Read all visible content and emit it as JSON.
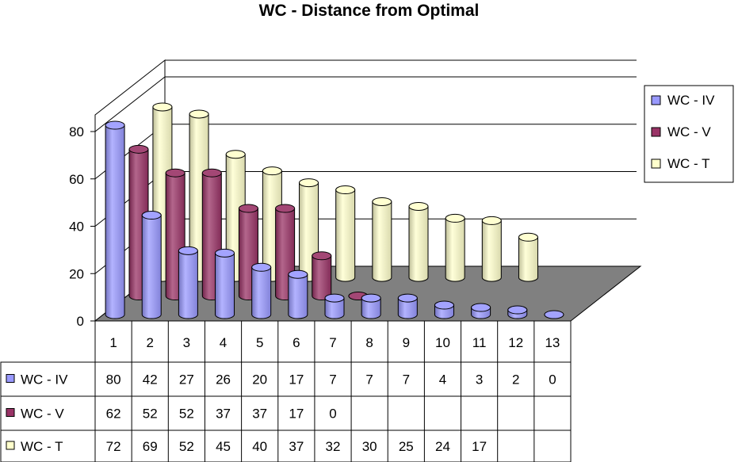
{
  "chart_data": {
    "type": "bar",
    "subtype": "3d-cylinder",
    "title": "WC - Distance from Optimal",
    "categories": [
      "1",
      "2",
      "3",
      "4",
      "5",
      "6",
      "7",
      "8",
      "9",
      "10",
      "11",
      "12",
      "13"
    ],
    "series": [
      {
        "name": "WC - IV",
        "values": [
          80,
          42,
          27,
          26,
          20,
          17,
          7,
          7,
          7,
          4,
          3,
          2,
          0
        ],
        "color": "#9999ff"
      },
      {
        "name": "WC - V",
        "values": [
          62,
          52,
          52,
          37,
          37,
          17,
          0,
          null,
          null,
          null,
          null,
          null,
          null
        ],
        "color": "#993366"
      },
      {
        "name": "WC - T",
        "values": [
          72,
          69,
          52,
          45,
          40,
          37,
          32,
          30,
          25,
          24,
          17,
          null,
          null
        ],
        "color": "#ffffcc"
      }
    ],
    "ylim": [
      0,
      80
    ],
    "yticks": [
      "0",
      "20",
      "40",
      "60",
      "80"
    ],
    "grid": true,
    "legend_position": "right",
    "data_table": true
  }
}
